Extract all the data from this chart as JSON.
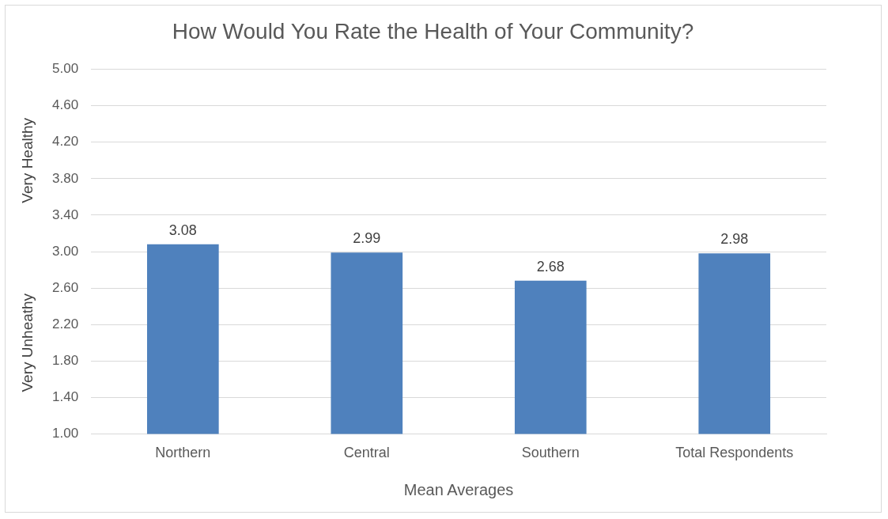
{
  "chart_data": {
    "type": "bar",
    "title": "How Would You Rate the Health of Your Community?",
    "xlabel": "Mean Averages",
    "categories": [
      "Northern",
      "Central",
      "Southern",
      "Total Respondents"
    ],
    "values": [
      3.08,
      2.99,
      2.68,
      2.98
    ],
    "color": "#4f81bd",
    "ylim": [
      1,
      5
    ],
    "yticks": [
      {
        "value": 1,
        "label": "1.00"
      },
      {
        "value": 1.4,
        "label": "1.40"
      },
      {
        "value": 1.8,
        "label": "1.80"
      },
      {
        "value": 2.2,
        "label": "2.20"
      },
      {
        "value": 2.6,
        "label": "2.60"
      },
      {
        "value": 3,
        "label": "3.00"
      },
      {
        "value": 3.4,
        "label": "3.40"
      },
      {
        "value": 3.8,
        "label": "3.80"
      },
      {
        "value": 4.2,
        "label": "4.20"
      },
      {
        "value": 4.6,
        "label": "4.60"
      },
      {
        "value": 5,
        "label": "5.00"
      }
    ],
    "grid": "y",
    "data_labels": true,
    "legend": false,
    "annotations": [
      "Very Healthy",
      "Very Unheathy"
    ]
  }
}
